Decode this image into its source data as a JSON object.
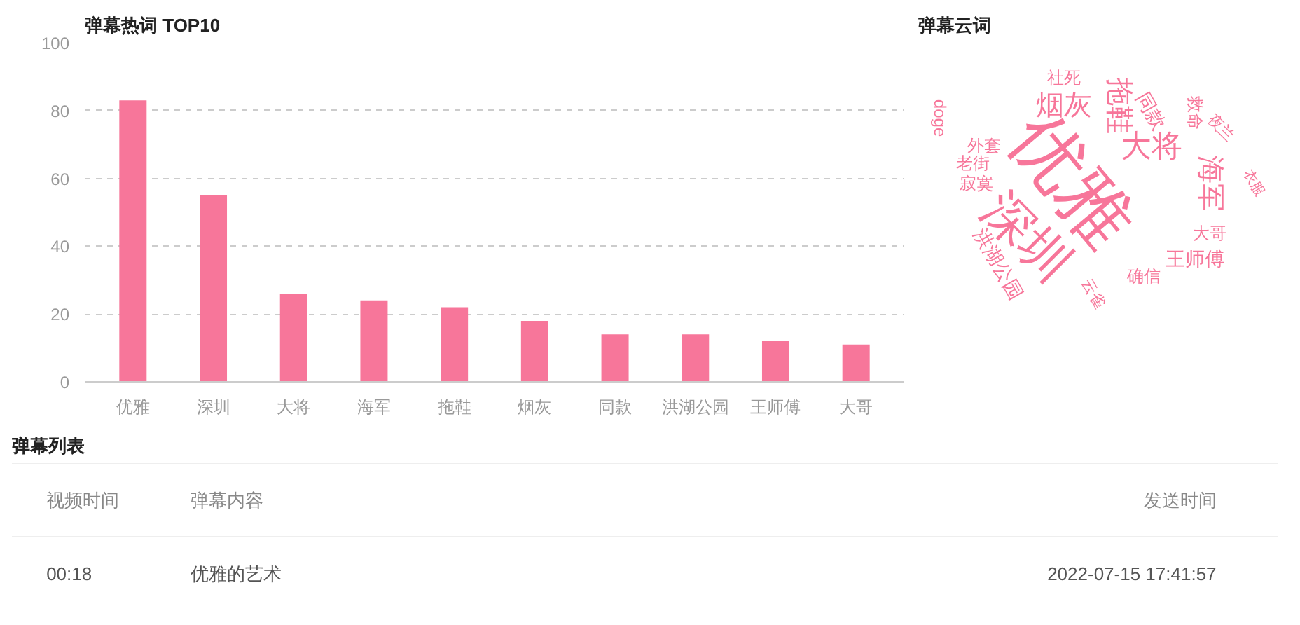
{
  "chart_data": [
    {
      "type": "bar",
      "title": "弹幕热词 TOP10",
      "categories": [
        "优雅",
        "深圳",
        "大将",
        "海军",
        "拖鞋",
        "烟灰",
        "同款",
        "洪湖公园",
        "王师傅",
        "大哥"
      ],
      "values": [
        83,
        55,
        26,
        24,
        22,
        18,
        14,
        14,
        12,
        11
      ],
      "color": "#f7769a",
      "ylim": [
        0,
        100
      ],
      "yticks": [
        0,
        20,
        40,
        60,
        80,
        100
      ],
      "grid": "y"
    },
    {
      "type": "other",
      "title": "弹幕云词",
      "categories": [
        "优雅",
        "深圳",
        "拖鞋",
        "烟灰",
        "大将",
        "海军",
        "同款",
        "救命",
        "社死",
        "doge",
        "外套",
        "老街",
        "寂寞",
        "洪湖公园",
        "王师傅",
        "大哥",
        "确信",
        "云雀",
        "衣服",
        "夜兰"
      ],
      "color": "#f7769a"
    },
    {
      "type": "other",
      "title": "弹幕列表",
      "annotations": [
        "视频时间",
        "弹幕内容",
        "发送时间",
        "00:18",
        "优雅的艺术",
        "2022-07-15 17:41:57"
      ]
    }
  ]
}
